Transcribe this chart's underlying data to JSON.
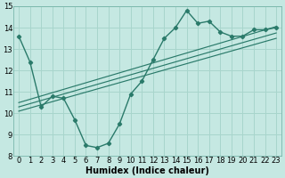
{
  "xlabel": "Humidex (Indice chaleur)",
  "xlim": [
    -0.5,
    23.5
  ],
  "ylim": [
    8,
    15
  ],
  "bg_color": "#c5e8e2",
  "grid_color": "#a8d5cc",
  "line_color": "#2a7a6a",
  "line1_x": [
    0,
    1,
    2,
    3,
    4,
    5,
    6,
    7,
    8,
    9,
    10,
    11,
    12,
    13,
    14,
    15,
    16,
    17,
    18,
    19,
    20,
    21,
    22,
    23
  ],
  "line1_y": [
    13.6,
    12.4,
    10.3,
    10.8,
    10.7,
    9.7,
    8.5,
    8.4,
    8.6,
    9.5,
    10.9,
    11.5,
    12.5,
    13.5,
    14.0,
    14.8,
    14.2,
    14.3,
    13.8,
    13.6,
    13.6,
    13.9,
    13.9,
    14.0
  ],
  "reg_lines": [
    {
      "x0": 0,
      "y0": 10.5,
      "x1": 23,
      "y1": 14.05
    },
    {
      "x0": 0,
      "y0": 10.3,
      "x1": 23,
      "y1": 13.75
    },
    {
      "x0": 0,
      "y0": 10.1,
      "x1": 23,
      "y1": 13.5
    }
  ],
  "xticks": [
    0,
    1,
    2,
    3,
    4,
    5,
    6,
    7,
    8,
    9,
    10,
    11,
    12,
    13,
    14,
    15,
    16,
    17,
    18,
    19,
    20,
    21,
    22,
    23
  ],
  "yticks": [
    8,
    9,
    10,
    11,
    12,
    13,
    14,
    15
  ],
  "tick_fontsize": 6,
  "xlabel_fontsize": 7
}
